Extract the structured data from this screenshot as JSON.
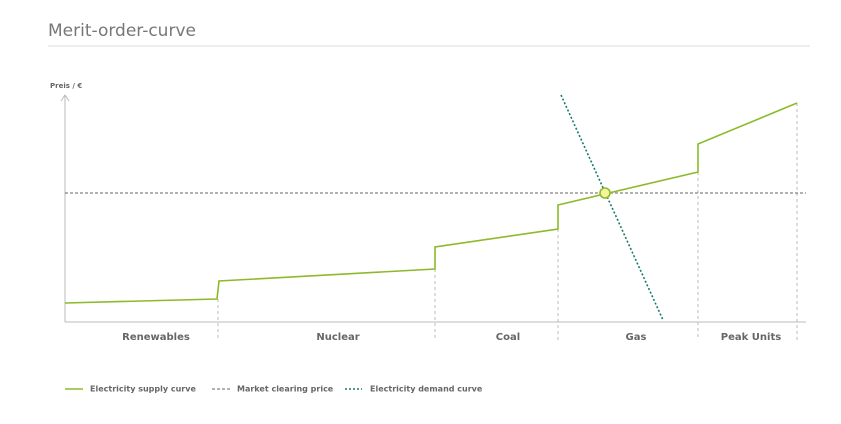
{
  "title": "Merit-order-curve",
  "axis_label": "Preis / €",
  "segments": [
    "Renewables",
    "Nuclear",
    "Coal",
    "Gas",
    "Peak Units"
  ],
  "legend": [
    "Electricity supply curve",
    "Market clearing price",
    "Electricity demand curve"
  ]
}
